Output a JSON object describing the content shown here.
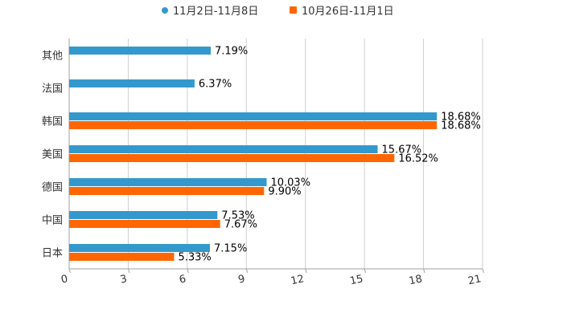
{
  "chart_data": {
    "type": "bar",
    "orientation": "horizontal",
    "categories": [
      "其他",
      "法国",
      "韩国",
      "美国",
      "德国",
      "中国",
      "日本"
    ],
    "series": [
      {
        "name": "11月2日-11月8日",
        "color": "#3399cc",
        "values": [
          7.19,
          6.37,
          18.68,
          15.67,
          10.03,
          7.53,
          7.15
        ]
      },
      {
        "name": "10月26日-11月1日",
        "color": "#ff6600",
        "values": [
          null,
          null,
          18.68,
          16.52,
          9.9,
          7.67,
          5.33
        ]
      }
    ],
    "data_label_suffix": "%",
    "xlim": [
      0,
      21
    ],
    "xticks": [
      0,
      3,
      6,
      9,
      12,
      15,
      18,
      21
    ],
    "grid": true,
    "legend_position": "top-center",
    "title": "",
    "xlabel": "",
    "ylabel": ""
  }
}
